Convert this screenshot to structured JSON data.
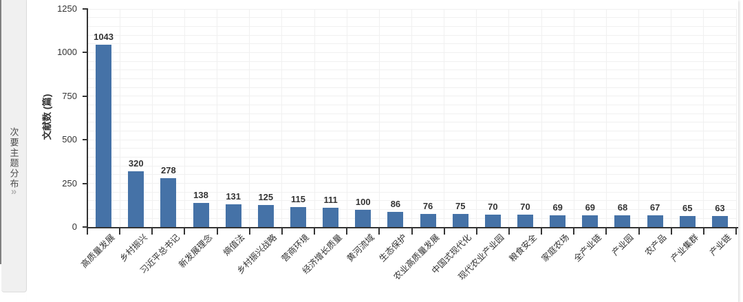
{
  "sidebar": {
    "label": "次要主题分布",
    "chevron_icon": "»",
    "bg_color": "#f0f0f0",
    "text_color": "#4d4d4d",
    "chevron_color": "#b3b3b3"
  },
  "chart_data": {
    "type": "bar",
    "title": "",
    "xlabel": "",
    "ylabel": "文献数 (篇)",
    "categories": [
      "高质量发展",
      "乡村振兴",
      "习近平总书记",
      "新发展理念",
      "熵值法",
      "乡村振兴战略",
      "营商环境",
      "经济增长质量",
      "黄河流域",
      "生态保护",
      "农业高质量发展",
      "中国式现代化",
      "现代农业产业园",
      "粮食安全",
      "家庭农场",
      "全产业链",
      "产业园",
      "农产品",
      "产业集群",
      "产业链"
    ],
    "values": [
      1043,
      320,
      278,
      138,
      131,
      125,
      115,
      111,
      100,
      86,
      76,
      75,
      70,
      70,
      69,
      69,
      68,
      67,
      65,
      63
    ],
    "ylim": [
      0,
      1250
    ],
    "ytick_interval": 250,
    "ytick_labels": [
      "0",
      "250",
      "500",
      "750",
      "1000",
      "1250"
    ],
    "minor_grid_interval": 50,
    "grid": true,
    "legend": false,
    "value_labels": true,
    "x_label_rotation_deg": -45,
    "style": {
      "bar_color": "#4572a7",
      "axis_color": "#333333",
      "gridline_color": "#f0f0f0",
      "text_color": "#333333"
    }
  }
}
